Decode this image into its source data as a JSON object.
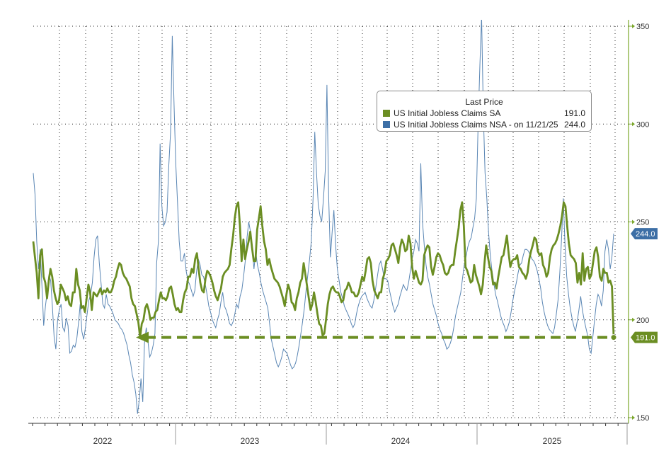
{
  "colors": {
    "sa": "#6b8e23",
    "nsa": "#5a86b4",
    "axis": "#7aa62a",
    "grid": "#222222",
    "label_sa_bg": "#6b8e23",
    "label_nsa_bg": "#3d6fa6"
  },
  "legend": {
    "title": "Last Price",
    "rows": [
      {
        "name": "US Initial Jobless Claims SA",
        "value": "191.0",
        "color": "#6b8e23"
      },
      {
        "name": "US Initial Jobless Claims NSA - on 11/21/25",
        "value": "244.0",
        "color": "#3d6fa6"
      }
    ]
  },
  "last_labels": {
    "sa": "191.0",
    "nsa": "244.0"
  },
  "chart_data": {
    "type": "line",
    "title": "",
    "xlabel": "",
    "ylabel": "",
    "ylim": [
      150,
      350
    ],
    "yticks": [
      150,
      200,
      250,
      300,
      350
    ],
    "xticks": [
      "2022",
      "2023",
      "2024",
      "2025"
    ],
    "grid": true,
    "legend_position": "top-right",
    "reference_line": {
      "value": 191,
      "style": "dashed",
      "from": "2022-05",
      "to": "2025-11"
    },
    "series": [
      {
        "name": "US Initial Jobless Claims SA",
        "x_range": [
          "2021-09",
          "2025-11"
        ],
        "values": [
          240,
          232,
          224,
          211,
          233,
          236,
          222,
          219,
          211,
          220,
          226,
          222,
          215,
          211,
          208,
          210,
          218,
          216,
          214,
          210,
          212,
          208,
          207,
          214,
          214,
          226,
          218,
          215,
          206,
          207,
          204,
          211,
          218,
          214,
          205,
          214,
          213,
          212,
          214,
          216,
          213,
          215,
          214,
          216,
          214,
          214,
          216,
          220,
          222,
          226,
          229,
          228,
          224,
          222,
          221,
          219,
          217,
          211,
          208,
          207,
          203,
          199,
          191,
          198,
          200,
          206,
          208,
          205,
          200,
          201,
          201,
          204,
          205,
          210,
          214,
          211,
          211,
          210,
          212,
          216,
          217,
          213,
          208,
          205,
          206,
          204,
          204,
          210,
          214,
          216,
          222,
          222,
          226,
          224,
          231,
          234,
          226,
          219,
          215,
          214,
          221,
          225,
          224,
          222,
          219,
          215,
          212,
          210,
          213,
          216,
          222,
          224,
          225,
          226,
          228,
          236,
          243,
          252,
          258,
          260,
          248,
          230,
          241,
          231,
          236,
          240,
          245,
          237,
          230,
          230,
          246,
          252,
          258,
          248,
          240,
          236,
          228,
          231,
          227,
          224,
          221,
          220,
          219,
          217,
          214,
          211,
          207,
          213,
          218,
          215,
          209,
          208,
          205,
          211,
          214,
          219,
          221,
          229,
          223,
          217,
          211,
          205,
          208,
          214,
          209,
          203,
          198,
          197,
          192,
          193,
          200,
          208,
          213,
          216,
          217,
          215,
          214,
          214,
          212,
          209,
          210,
          215,
          216,
          219,
          217,
          214,
          214,
          212,
          212,
          214,
          218,
          222,
          220,
          225,
          231,
          232,
          229,
          220,
          215,
          213,
          211,
          214,
          214,
          221,
          224,
          230,
          231,
          233,
          238,
          239,
          236,
          233,
          229,
          237,
          241,
          239,
          235,
          236,
          243,
          239,
          227,
          221,
          225,
          222,
          219,
          218,
          220,
          233,
          236,
          238,
          237,
          227,
          223,
          227,
          232,
          234,
          233,
          230,
          228,
          224,
          223,
          224,
          227,
          228,
          228,
          235,
          241,
          247,
          256,
          260,
          248,
          227,
          225,
          222,
          219,
          220,
          228,
          223,
          220,
          217,
          213,
          218,
          229,
          238,
          232,
          227,
          225,
          218,
          219,
          216,
          222,
          227,
          232,
          233,
          238,
          243,
          234,
          227,
          230,
          231,
          231,
          233,
          227,
          226,
          224,
          223,
          221,
          224,
          231,
          235,
          238,
          242,
          241,
          235,
          233,
          234,
          228,
          226,
          222,
          224,
          232,
          236,
          238,
          239,
          241,
          244,
          248,
          253,
          260,
          258,
          248,
          239,
          233,
          232,
          231,
          229,
          219,
          224,
          218,
          234,
          220,
          226,
          227,
          221,
          223,
          229,
          235,
          237,
          232,
          222,
          220,
          226,
          224,
          224,
          219,
          220,
          217,
          191
        ],
        "color": "#6b8e23"
      },
      {
        "name": "US Initial Jobless Claims NSA",
        "x_range": [
          "2021-09",
          "2025-11"
        ],
        "values": [
          275,
          264,
          240,
          226,
          236,
          217,
          197,
          207,
          214,
          223,
          220,
          207,
          191,
          185,
          200,
          205,
          208,
          196,
          194,
          201,
          197,
          183,
          184,
          187,
          186,
          190,
          198,
          208,
          194,
          190,
          196,
          203,
          210,
          213,
          219,
          232,
          241,
          243,
          229,
          219,
          208,
          206,
          213,
          208,
          207,
          205,
          203,
          200,
          199,
          198,
          196,
          195,
          193,
          190,
          187,
          182,
          178,
          172,
          168,
          162,
          152,
          159,
          170,
          158,
          188,
          196,
          189,
          181,
          183,
          187,
          193,
          229,
          240,
          290,
          258,
          248,
          250,
          255,
          279,
          296,
          345,
          310,
          280,
          260,
          240,
          230,
          230,
          234,
          225,
          220,
          218,
          215,
          212,
          215,
          225,
          231,
          228,
          223,
          222,
          218,
          213,
          207,
          204,
          200,
          198,
          196,
          200,
          203,
          209,
          214,
          207,
          205,
          202,
          198,
          197,
          199,
          203,
          208,
          206,
          212,
          215,
          222,
          230,
          242,
          250,
          245,
          237,
          226,
          235,
          228,
          224,
          219,
          215,
          212,
          209,
          206,
          198,
          190,
          186,
          182,
          178,
          176,
          178,
          181,
          185,
          184,
          183,
          180,
          177,
          175,
          176,
          178,
          182,
          187,
          193,
          199,
          206,
          215,
          223,
          231,
          240,
          262,
          296,
          275,
          259,
          253,
          250,
          262,
          276,
          320,
          262,
          232,
          245,
          256,
          238,
          226,
          220,
          214,
          211,
          207,
          205,
          203,
          201,
          198,
          196,
          198,
          203,
          207,
          210,
          212,
          213,
          214,
          211,
          209,
          207,
          206,
          210,
          216,
          222,
          228,
          230,
          226,
          221,
          221,
          220,
          215,
          211,
          207,
          204,
          206,
          208,
          212,
          215,
          218,
          216,
          215,
          219,
          225,
          231,
          235,
          241,
          239,
          235,
          280,
          250,
          238,
          228,
          222,
          218,
          213,
          208,
          205,
          202,
          198,
          195,
          193,
          190,
          188,
          185,
          186,
          188,
          191,
          196,
          202,
          206,
          210,
          214,
          221,
          228,
          232,
          237,
          240,
          242,
          247,
          252,
          262,
          300,
          330,
          355,
          305,
          275,
          262,
          245,
          233,
          225,
          219,
          213,
          210,
          206,
          202,
          199,
          197,
          194,
          196,
          199,
          204,
          210,
          215,
          219,
          224,
          228,
          229,
          233,
          236,
          236,
          235,
          233,
          231,
          230,
          228,
          225,
          221,
          216,
          209,
          204,
          200,
          197,
          195,
          194,
          193,
          196,
          203,
          210,
          224,
          241,
          262,
          238,
          222,
          213,
          206,
          201,
          197,
          194,
          199,
          205,
          212,
          205,
          200,
          196,
          192,
          185,
          183,
          191,
          200,
          208,
          213,
          211,
          207,
          215,
          235,
          241,
          236,
          226,
          232,
          244
        ],
        "color": "#5a86b4"
      }
    ]
  }
}
